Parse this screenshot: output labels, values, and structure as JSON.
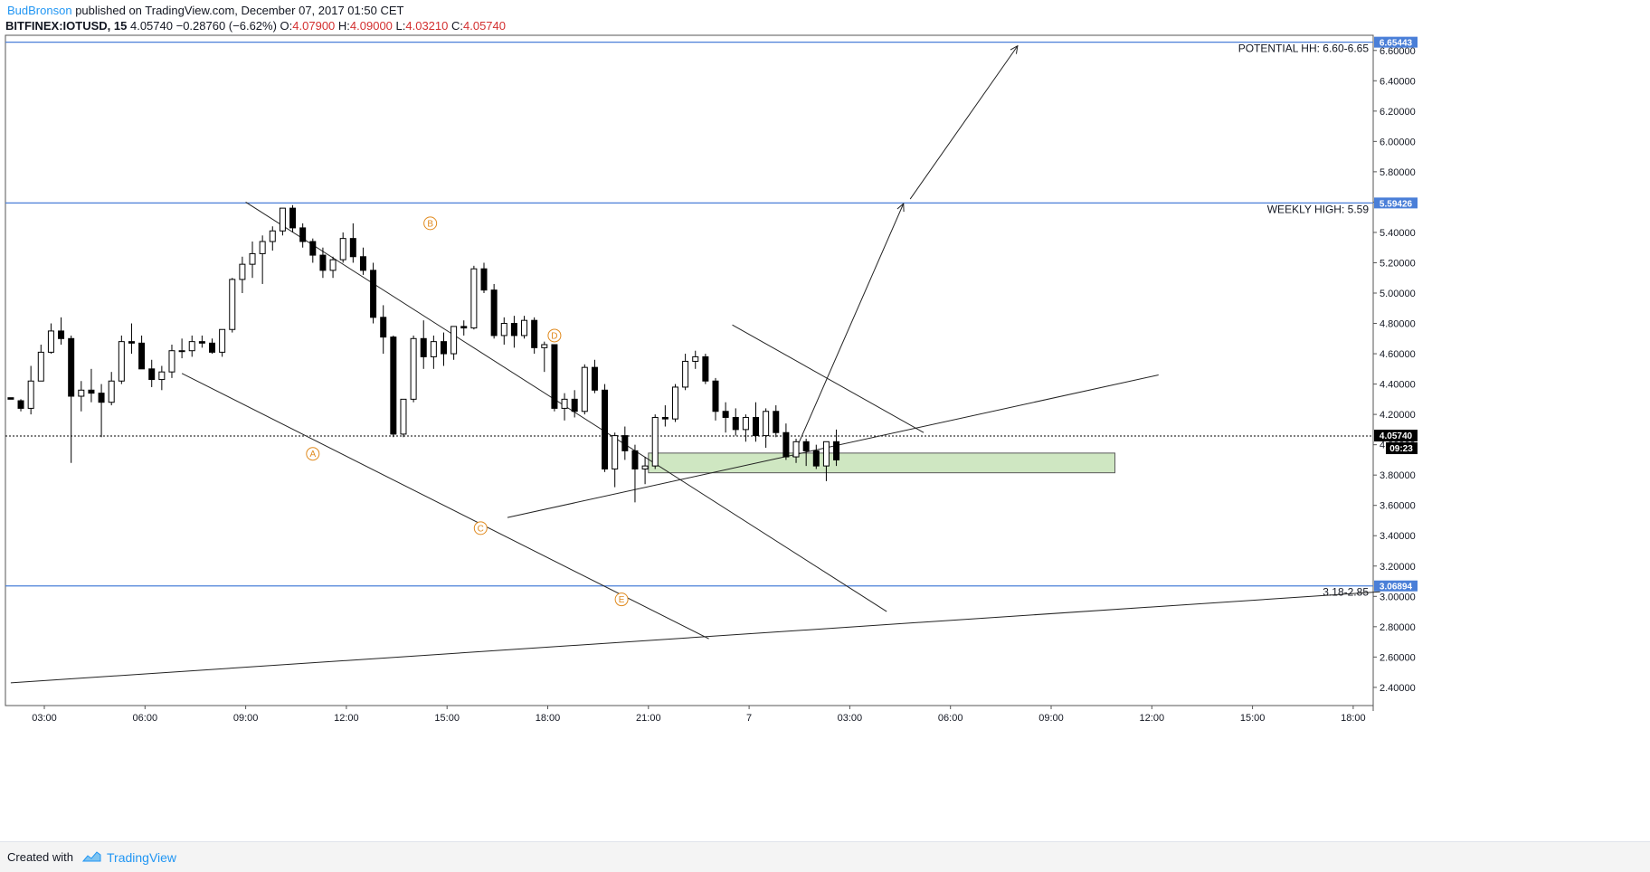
{
  "header": {
    "author": "BudBronson",
    "published": "published on TradingView.com, December 07, 2017 01:50 CET"
  },
  "symbol_line": {
    "symbol": "BITFINEX:IOTUSD, 15",
    "last": "4.05740",
    "change": "−0.28760 (−6.62%)",
    "o_label": "O:",
    "o": "4.07900",
    "h_label": "H:",
    "h": "4.09000",
    "l_label": "L:",
    "l": "4.03210",
    "c_label": "C:",
    "c": "4.05740"
  },
  "footer": {
    "created_with": "Created with",
    "brand": "TradingView",
    "logo_icon": "tradingview-cloud-icon"
  },
  "colors": {
    "level_line": "#4a7fd8",
    "candle_up": "#ffffff",
    "candle_down": "#000000",
    "wave_label": "#e08a1e",
    "zone_fill": "#cfe7c2",
    "zone_border": "#5a5a5a",
    "price_badge": "#000000"
  },
  "chart_data": {
    "type": "candlestick",
    "ylim": [
      2.28,
      6.7
    ],
    "y_ticks": [
      "2.40000",
      "2.60000",
      "2.80000",
      "3.00000",
      "3.20000",
      "3.40000",
      "3.60000",
      "3.80000",
      "4.00000",
      "4.20000",
      "4.40000",
      "4.60000",
      "4.80000",
      "5.00000",
      "5.20000",
      "5.40000",
      "5.60000",
      "5.80000",
      "6.00000",
      "6.20000",
      "6.40000",
      "6.60000"
    ],
    "x_labels": [
      {
        "label": "03:00",
        "h": 3
      },
      {
        "label": "06:00",
        "h": 6
      },
      {
        "label": "09:00",
        "h": 9
      },
      {
        "label": "12:00",
        "h": 12
      },
      {
        "label": "15:00",
        "h": 15
      },
      {
        "label": "18:00",
        "h": 18
      },
      {
        "label": "21:00",
        "h": 21
      },
      {
        "label": "7",
        "h": 24
      },
      {
        "label": "03:00",
        "h": 27
      },
      {
        "label": "06:00",
        "h": 30
      },
      {
        "label": "09:00",
        "h": 33
      },
      {
        "label": "12:00",
        "h": 36
      },
      {
        "label": "15:00",
        "h": 39
      },
      {
        "label": "18:00",
        "h": 42
      }
    ],
    "levels": [
      {
        "value": 6.65443,
        "badge": "6.65443",
        "text": "POTENTIAL HH: 6.60-6.65"
      },
      {
        "value": 5.59426,
        "badge": "5.59426",
        "text": "WEEKLY HIGH: 5.59"
      },
      {
        "value": 3.06894,
        "badge": "3.06894",
        "text": "3.18-2.85"
      }
    ],
    "last_price": {
      "value": 4.0574,
      "label": "4.05740",
      "countdown": "09:23"
    },
    "wave_labels": [
      {
        "label": "A",
        "h": 11.0,
        "y": 3.94
      },
      {
        "label": "B",
        "h": 14.5,
        "y": 5.46
      },
      {
        "label": "C",
        "h": 16.0,
        "y": 3.45
      },
      {
        "label": "D",
        "h": 18.2,
        "y": 4.72
      },
      {
        "label": "E",
        "h": 20.2,
        "y": 2.98
      }
    ],
    "trendlines": [
      {
        "h1": 9.0,
        "y1": 5.6,
        "h2": 28.1,
        "y2": 2.9
      },
      {
        "h1": 7.1,
        "y1": 4.47,
        "h2": 22.8,
        "y2": 2.72
      },
      {
        "h1": 16.8,
        "y1": 3.52,
        "h2": 36.2,
        "y2": 4.46
      },
      {
        "h1": 23.5,
        "y1": 4.79,
        "h2": 29.2,
        "y2": 4.08
      },
      {
        "h1": 2.0,
        "y1": 2.43,
        "h2": 42.8,
        "y2": 3.03
      }
    ],
    "arrows": [
      {
        "h1": 25.3,
        "y1": 3.92,
        "h2": 28.6,
        "y2": 5.59
      },
      {
        "h1": 28.8,
        "y1": 5.62,
        "h2": 32.0,
        "y2": 6.63
      }
    ],
    "zone": {
      "h1": 21.0,
      "h2": 34.9,
      "y_top": 3.945,
      "y_bottom": 3.815
    },
    "candles": [
      [
        2.0,
        4.31,
        4.31,
        4.3,
        4.3
      ],
      [
        2.3,
        4.29,
        4.3,
        4.22,
        4.24
      ],
      [
        2.6,
        4.24,
        4.52,
        4.2,
        4.42
      ],
      [
        2.9,
        4.42,
        4.66,
        4.42,
        4.61
      ],
      [
        3.2,
        4.61,
        4.8,
        4.6,
        4.75
      ],
      [
        3.5,
        4.75,
        4.84,
        4.66,
        4.7
      ],
      [
        3.8,
        4.7,
        4.72,
        3.88,
        4.32
      ],
      [
        4.1,
        4.32,
        4.42,
        4.22,
        4.36
      ],
      [
        4.4,
        4.36,
        4.5,
        4.28,
        4.34
      ],
      [
        4.7,
        4.34,
        4.4,
        4.05,
        4.28
      ],
      [
        5.0,
        4.28,
        4.48,
        4.26,
        4.42
      ],
      [
        5.3,
        4.42,
        4.72,
        4.4,
        4.68
      ],
      [
        5.6,
        4.68,
        4.8,
        4.6,
        4.67
      ],
      [
        5.9,
        4.67,
        4.72,
        4.5,
        4.5
      ],
      [
        6.2,
        4.5,
        4.56,
        4.38,
        4.43
      ],
      [
        6.5,
        4.43,
        4.52,
        4.36,
        4.48
      ],
      [
        6.8,
        4.48,
        4.66,
        4.44,
        4.62
      ],
      [
        7.1,
        4.62,
        4.7,
        4.57,
        4.62
      ],
      [
        7.4,
        4.62,
        4.72,
        4.58,
        4.68
      ],
      [
        7.7,
        4.68,
        4.72,
        4.64,
        4.67
      ],
      [
        8.0,
        4.67,
        4.7,
        4.6,
        4.61
      ],
      [
        8.3,
        4.61,
        4.76,
        4.58,
        4.76
      ],
      [
        8.6,
        4.76,
        5.1,
        4.74,
        5.09
      ],
      [
        8.9,
        5.09,
        5.24,
        5.0,
        5.19
      ],
      [
        9.2,
        5.19,
        5.34,
        5.1,
        5.26
      ],
      [
        9.5,
        5.26,
        5.38,
        5.06,
        5.34
      ],
      [
        9.8,
        5.34,
        5.44,
        5.28,
        5.41
      ],
      [
        10.1,
        5.41,
        5.56,
        5.38,
        5.56
      ],
      [
        10.4,
        5.56,
        5.58,
        5.4,
        5.43
      ],
      [
        10.7,
        5.43,
        5.46,
        5.3,
        5.34
      ],
      [
        11.0,
        5.34,
        5.36,
        5.2,
        5.25
      ],
      [
        11.3,
        5.25,
        5.3,
        5.1,
        5.15
      ],
      [
        11.6,
        5.15,
        5.24,
        5.1,
        5.22
      ],
      [
        11.9,
        5.22,
        5.4,
        5.2,
        5.36
      ],
      [
        12.2,
        5.36,
        5.46,
        5.2,
        5.24
      ],
      [
        12.5,
        5.24,
        5.3,
        5.12,
        5.15
      ],
      [
        12.8,
        5.15,
        5.2,
        4.8,
        4.84
      ],
      [
        13.1,
        4.84,
        4.92,
        4.6,
        4.71
      ],
      [
        13.4,
        4.71,
        4.72,
        4.05,
        4.07
      ],
      [
        13.7,
        4.07,
        4.3,
        4.05,
        4.3
      ],
      [
        14.0,
        4.3,
        4.72,
        4.28,
        4.7
      ],
      [
        14.3,
        4.7,
        4.82,
        4.5,
        4.58
      ],
      [
        14.6,
        4.58,
        4.72,
        4.5,
        4.68
      ],
      [
        14.9,
        4.68,
        4.74,
        4.52,
        4.6
      ],
      [
        15.2,
        4.6,
        4.78,
        4.56,
        4.78
      ],
      [
        15.5,
        4.78,
        4.82,
        4.72,
        4.77
      ],
      [
        15.8,
        4.77,
        5.18,
        4.76,
        5.16
      ],
      [
        16.1,
        5.16,
        5.2,
        5.0,
        5.02
      ],
      [
        16.4,
        5.02,
        5.06,
        4.7,
        4.72
      ],
      [
        16.7,
        4.72,
        4.84,
        4.66,
        4.8
      ],
      [
        17.0,
        4.8,
        4.85,
        4.64,
        4.72
      ],
      [
        17.3,
        4.72,
        4.85,
        4.7,
        4.82
      ],
      [
        17.6,
        4.82,
        4.84,
        4.6,
        4.64
      ],
      [
        17.9,
        4.64,
        4.68,
        4.48,
        4.66
      ],
      [
        18.2,
        4.66,
        4.66,
        4.22,
        4.24
      ],
      [
        18.5,
        4.24,
        4.34,
        4.16,
        4.3
      ],
      [
        18.8,
        4.3,
        4.36,
        4.18,
        4.22
      ],
      [
        19.1,
        4.22,
        4.53,
        4.2,
        4.51
      ],
      [
        19.4,
        4.51,
        4.56,
        4.34,
        4.36
      ],
      [
        19.7,
        4.36,
        4.4,
        3.82,
        3.84
      ],
      [
        20.0,
        3.84,
        4.08,
        3.72,
        4.06
      ],
      [
        20.3,
        4.06,
        4.12,
        3.9,
        3.96
      ],
      [
        20.6,
        3.96,
        4.0,
        3.62,
        3.84
      ],
      [
        20.9,
        3.84,
        3.92,
        3.74,
        3.86
      ],
      [
        21.2,
        3.86,
        4.2,
        3.84,
        4.18
      ],
      [
        21.5,
        4.18,
        4.26,
        4.12,
        4.17
      ],
      [
        21.8,
        4.17,
        4.4,
        4.15,
        4.38
      ],
      [
        22.1,
        4.38,
        4.6,
        4.36,
        4.55
      ],
      [
        22.4,
        4.55,
        4.62,
        4.5,
        4.58
      ],
      [
        22.7,
        4.58,
        4.6,
        4.4,
        4.42
      ],
      [
        23.0,
        4.42,
        4.44,
        4.16,
        4.22
      ],
      [
        23.3,
        4.22,
        4.28,
        4.08,
        4.18
      ],
      [
        23.6,
        4.18,
        4.24,
        4.06,
        4.1
      ],
      [
        23.9,
        4.1,
        4.2,
        4.02,
        4.18
      ],
      [
        24.2,
        4.18,
        4.28,
        4.02,
        4.06
      ],
      [
        24.5,
        4.06,
        4.24,
        3.98,
        4.22
      ],
      [
        24.8,
        4.22,
        4.26,
        4.05,
        4.08
      ],
      [
        25.1,
        4.08,
        4.14,
        3.9,
        3.92
      ],
      [
        25.4,
        3.92,
        4.04,
        3.88,
        4.02
      ],
      [
        25.7,
        4.02,
        4.04,
        3.86,
        3.96
      ],
      [
        26.0,
        3.96,
        4.0,
        3.84,
        3.86
      ],
      [
        26.3,
        3.86,
        4.02,
        3.76,
        4.02
      ],
      [
        26.6,
        4.02,
        4.1,
        3.86,
        3.9
      ]
    ]
  }
}
